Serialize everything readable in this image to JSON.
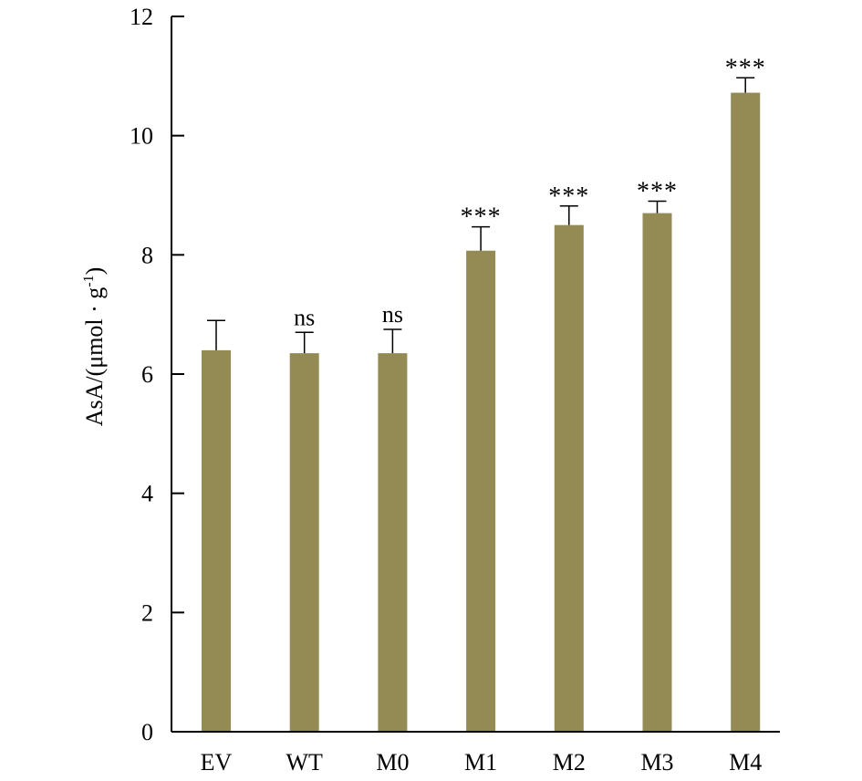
{
  "chart_data": {
    "type": "bar",
    "title": "",
    "xlabel": "",
    "ylabel_prefix": "AsA/(μmol · g",
    "ylabel_sup": "-1",
    "ylabel_suffix": ")",
    "ylim": [
      0,
      12
    ],
    "yticks": [
      "0",
      "2",
      "4",
      "6",
      "8",
      "10",
      "12"
    ],
    "categories": [
      "EV",
      "WT",
      "M0",
      "M1",
      "M2",
      "M3",
      "M4"
    ],
    "values": [
      6.4,
      6.35,
      6.35,
      8.07,
      8.5,
      8.7,
      10.72
    ],
    "errors": [
      0.5,
      0.35,
      0.4,
      0.4,
      0.32,
      0.2,
      0.25
    ],
    "annotations": [
      "",
      "ns",
      "ns",
      "***",
      "***",
      "***",
      "***"
    ],
    "bar_color": "#948a54",
    "grid": false
  }
}
